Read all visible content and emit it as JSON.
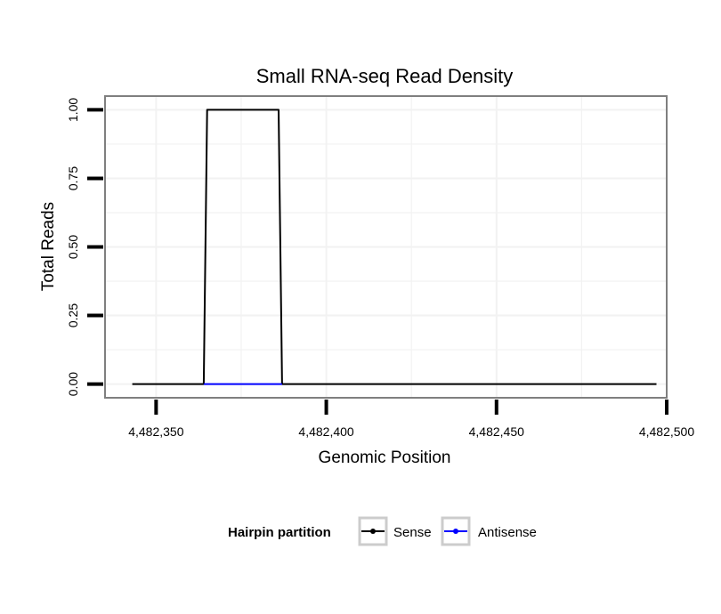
{
  "chart_data": {
    "type": "line",
    "title": "Small RNA-seq Read Density",
    "xlabel": "Genomic Position",
    "ylabel": "Total Reads",
    "xlim": [
      4482335,
      4482500
    ],
    "ylim": [
      -0.05,
      1.05
    ],
    "x_ticks": [
      4482350,
      4482400,
      4482450,
      4482500
    ],
    "x_tick_labels": [
      "4,482,350",
      "4,482,400",
      "4,482,450",
      "4,482,500"
    ],
    "y_ticks": [
      0,
      0.25,
      0.5,
      0.75,
      1.0
    ],
    "y_tick_labels": [
      "0.00",
      "0.25",
      "0.50",
      "0.75",
      "1.00"
    ],
    "grid": true,
    "legend": {
      "title": "Hairpin partition",
      "position": "bottom",
      "entries": [
        "Sense",
        "Antisense"
      ]
    },
    "series": [
      {
        "name": "Sense",
        "color": "#000000",
        "x": [
          4482343,
          4482364,
          4482365,
          4482386,
          4482387,
          4482497
        ],
        "y": [
          0,
          0,
          1,
          1,
          0,
          0
        ]
      },
      {
        "name": "Antisense",
        "color": "#0000ff",
        "x": [
          4482364,
          4482387
        ],
        "y": [
          0,
          0
        ]
      }
    ]
  }
}
